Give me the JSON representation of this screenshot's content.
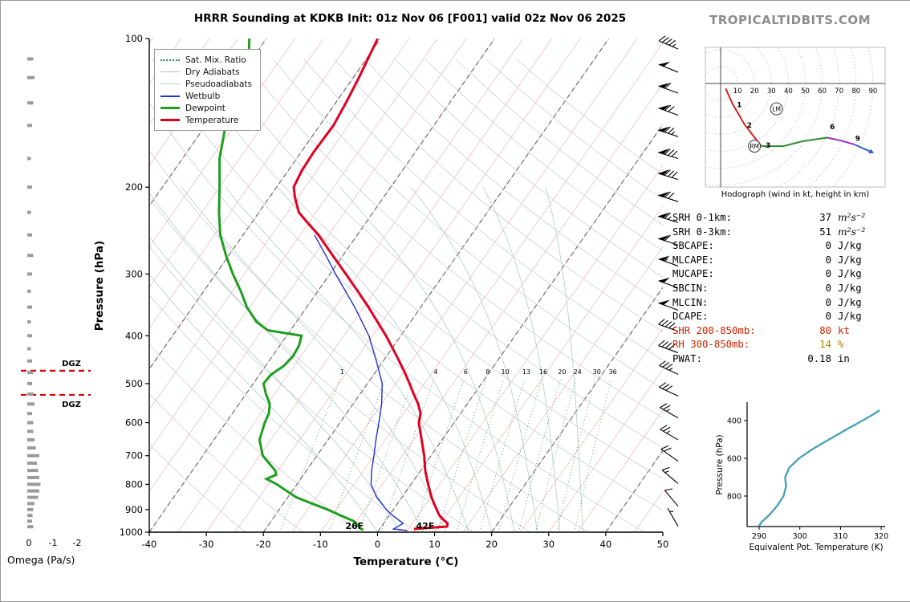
{
  "header": {
    "title": "HRRR Sounding at KDKB Init: 01z Nov 06 [F001] valid 02z Nov 06 2025",
    "brand": "TROPICALTIDBITS.COM"
  },
  "stats": {
    "rows": [
      {
        "label": "SRH 0-1km:",
        "value": "37",
        "unit": "m²s⁻²",
        "unit_style": "math"
      },
      {
        "label": "SRH 0-3km:",
        "value": "51",
        "unit": "m²s⁻²",
        "unit_style": "math"
      },
      {
        "label": "SBCAPE:",
        "value": "0",
        "unit": "J/kg"
      },
      {
        "label": "MLCAPE:",
        "value": "0",
        "unit": "J/kg"
      },
      {
        "label": "MUCAPE:",
        "value": "0",
        "unit": "J/kg"
      },
      {
        "label": "SBCIN:",
        "value": "0",
        "unit": "J/kg"
      },
      {
        "label": "MLCIN:",
        "value": "0",
        "unit": "J/kg"
      },
      {
        "label": "DCAPE:",
        "value": "0",
        "unit": "J/kg"
      },
      {
        "label": "SHR 200-850mb:",
        "value": "80",
        "unit": "kt",
        "label_color": "#cc2200",
        "value_color": "#cc2200"
      },
      {
        "label": "RH 300-850mb:",
        "value": "14",
        "unit": "%",
        "label_color": "#cc2200",
        "value_color": "#ab8a00"
      },
      {
        "label": "PWAT:",
        "value": "0.18",
        "unit": "in"
      }
    ]
  },
  "chart_data": {
    "type": "skewt-sounding",
    "skewt": {
      "xlabel": "Temperature (°C)",
      "ylabel": "Pressure (hPa)",
      "x_ticks": [
        -40,
        -30,
        -20,
        -10,
        0,
        10,
        20,
        30,
        40,
        50
      ],
      "y_ticks": [
        100,
        200,
        300,
        400,
        500,
        600,
        700,
        800,
        900,
        1000
      ],
      "xlim": [
        -40,
        50
      ],
      "plim": [
        100,
        1050
      ],
      "legend": [
        {
          "label": "Sat. Mix. Ratio",
          "key": "satmix"
        },
        {
          "label": "Dry Adiabats",
          "key": "dry"
        },
        {
          "label": "Pseudoadiabats",
          "key": "pseudo"
        },
        {
          "label": "Wetbulb",
          "key": "wetbulb"
        },
        {
          "label": "Dewpoint",
          "key": "dewpoint"
        },
        {
          "label": "Temperature",
          "key": "temperature"
        }
      ],
      "surface_temp_label": {
        "text": "42F",
        "color": "#e00020"
      },
      "surface_dew_label": {
        "text": "26F",
        "color": "#1f9e1f"
      },
      "mixing_ratio_lines": [
        1,
        2,
        3,
        4,
        6,
        8,
        10,
        13,
        16,
        20,
        24,
        30,
        36
      ],
      "mixing_ratio_labels": [
        1,
        4,
        6,
        8,
        10,
        13,
        16,
        20,
        24,
        30,
        36
      ],
      "isotherm_step": 5,
      "dashed_isotherms": [
        -100,
        -80,
        -60,
        -40,
        -20,
        0,
        20,
        40
      ],
      "dry_adiabats_thetaK": [
        250,
        260,
        270,
        280,
        290,
        300,
        310,
        320,
        330,
        340,
        350,
        360,
        370,
        380,
        390,
        400,
        410,
        420,
        430,
        440,
        450
      ],
      "pseudoadiabats_twC": [
        0,
        4,
        8,
        12,
        16,
        20,
        24,
        28,
        32,
        36
      ],
      "profiles": {
        "temperature": [
          [
            985,
            6.0
          ],
          [
            974,
            11.5
          ],
          [
            960,
            11.2
          ],
          [
            940,
            9.8
          ],
          [
            925,
            8.8
          ],
          [
            900,
            7.6
          ],
          [
            875,
            6.4
          ],
          [
            850,
            5.2
          ],
          [
            800,
            3.0
          ],
          [
            750,
            0.8
          ],
          [
            700,
            -1.2
          ],
          [
            650,
            -3.6
          ],
          [
            600,
            -6.2
          ],
          [
            575,
            -7.0
          ],
          [
            550,
            -8.6
          ],
          [
            525,
            -10.6
          ],
          [
            500,
            -12.6
          ],
          [
            475,
            -14.8
          ],
          [
            450,
            -17.2
          ],
          [
            425,
            -19.8
          ],
          [
            400,
            -22.6
          ],
          [
            375,
            -25.8
          ],
          [
            350,
            -29.2
          ],
          [
            325,
            -33.0
          ],
          [
            300,
            -37.2
          ],
          [
            275,
            -41.8
          ],
          [
            250,
            -46.8
          ],
          [
            235,
            -50.5
          ],
          [
            225,
            -53.0
          ],
          [
            210,
            -55.5
          ],
          [
            200,
            -57.0
          ],
          [
            185,
            -57.6
          ],
          [
            170,
            -57.8
          ],
          [
            150,
            -57.6
          ],
          [
            135,
            -58.2
          ],
          [
            120,
            -59.0
          ],
          [
            100,
            -60.5
          ]
        ],
        "dewpoint": [
          [
            988,
            -2.8
          ],
          [
            985,
            -3.3
          ],
          [
            970,
            -4.2
          ],
          [
            950,
            -5.5
          ],
          [
            925,
            -8.5
          ],
          [
            900,
            -11.5
          ],
          [
            875,
            -15.0
          ],
          [
            850,
            -18.5
          ],
          [
            825,
            -21.0
          ],
          [
            800,
            -23.5
          ],
          [
            780,
            -26.0
          ],
          [
            765,
            -24.8
          ],
          [
            750,
            -25.5
          ],
          [
            700,
            -29.5
          ],
          [
            650,
            -32.0
          ],
          [
            600,
            -33.2
          ],
          [
            575,
            -33.6
          ],
          [
            550,
            -34.6
          ],
          [
            525,
            -36.5
          ],
          [
            500,
            -38.2
          ],
          [
            480,
            -38.0
          ],
          [
            460,
            -36.8
          ],
          [
            440,
            -36.4
          ],
          [
            420,
            -36.6
          ],
          [
            400,
            -37.4
          ],
          [
            390,
            -44.0
          ],
          [
            375,
            -47.0
          ],
          [
            350,
            -50.5
          ],
          [
            325,
            -53.5
          ],
          [
            300,
            -57.0
          ],
          [
            275,
            -60.5
          ],
          [
            250,
            -64.0
          ],
          [
            225,
            -67.0
          ],
          [
            200,
            -70.0
          ],
          [
            175,
            -73.5
          ],
          [
            150,
            -76.5
          ],
          [
            130,
            -79.0
          ],
          [
            115,
            -79.5
          ],
          [
            100,
            -83.0
          ]
        ],
        "wetbulb": [
          [
            992,
            5.0
          ],
          [
            985,
            2.4
          ],
          [
            960,
            3.4
          ],
          [
            925,
            0.6
          ],
          [
            900,
            -1.2
          ],
          [
            850,
            -4.4
          ],
          [
            800,
            -7.0
          ],
          [
            750,
            -8.6
          ],
          [
            700,
            -10.0
          ],
          [
            650,
            -11.6
          ],
          [
            600,
            -13.2
          ],
          [
            550,
            -15.0
          ],
          [
            500,
            -17.4
          ],
          [
            450,
            -21.2
          ],
          [
            400,
            -25.6
          ],
          [
            350,
            -31.6
          ],
          [
            300,
            -39.0
          ],
          [
            275,
            -43.0
          ],
          [
            250,
            -47.5
          ]
        ]
      },
      "dgz": {
        "label": "DGZ",
        "levels": [
          471,
          527
        ],
        "color": "#dd0000"
      },
      "wind_barbs": [
        [
          973,
          5,
          330
        ],
        [
          886,
          10,
          320
        ],
        [
          797,
          15,
          310
        ],
        [
          718,
          20,
          305
        ],
        [
          650,
          25,
          300
        ],
        [
          587,
          25,
          300
        ],
        [
          530,
          30,
          295
        ],
        [
          479,
          35,
          295
        ],
        [
          433,
          40,
          290
        ],
        [
          392,
          45,
          290
        ],
        [
          355,
          50,
          290
        ],
        [
          320,
          50,
          290
        ],
        [
          289,
          55,
          290
        ],
        [
          262,
          60,
          288
        ],
        [
          236,
          65,
          288
        ],
        [
          214,
          70,
          288
        ],
        [
          193,
          80,
          287
        ],
        [
          175,
          80,
          287
        ],
        [
          158,
          75,
          288
        ],
        [
          143,
          70,
          290
        ],
        [
          129,
          60,
          290
        ],
        [
          117,
          50,
          292
        ],
        [
          105,
          45,
          293
        ]
      ]
    },
    "omega": {
      "label": "Omega (Pa/s)",
      "ticks": [
        "0",
        "-1",
        "-2"
      ],
      "values": [
        [
          975,
          -0.25
        ],
        [
          950,
          -0.2
        ],
        [
          925,
          -0.22
        ],
        [
          900,
          -0.25
        ],
        [
          875,
          -0.3
        ],
        [
          850,
          -0.45
        ],
        [
          825,
          -0.5
        ],
        [
          800,
          -0.55
        ],
        [
          775,
          -0.5
        ],
        [
          750,
          -0.45
        ],
        [
          725,
          -0.4
        ],
        [
          700,
          -0.5
        ],
        [
          675,
          -0.35
        ],
        [
          650,
          -0.3
        ],
        [
          625,
          -0.25
        ],
        [
          600,
          -0.25
        ],
        [
          575,
          -0.2
        ],
        [
          550,
          -0.3
        ],
        [
          525,
          -0.25
        ],
        [
          500,
          -0.2
        ],
        [
          475,
          -0.25
        ],
        [
          450,
          -0.2
        ],
        [
          425,
          -0.15
        ],
        [
          400,
          -0.2
        ],
        [
          375,
          -0.15
        ],
        [
          350,
          -0.2
        ],
        [
          325,
          -0.15
        ],
        [
          300,
          -0.2
        ],
        [
          275,
          -0.25
        ],
        [
          250,
          -0.2
        ],
        [
          225,
          -0.15
        ],
        [
          200,
          -0.2
        ],
        [
          175,
          -0.15
        ],
        [
          150,
          -0.2
        ],
        [
          135,
          -0.25
        ],
        [
          120,
          -0.3
        ],
        [
          110,
          -0.25
        ]
      ]
    },
    "hodograph": {
      "caption": "Hodograph (wind in kt, height in km)",
      "rings": [
        10,
        20,
        30,
        40,
        50,
        60,
        70,
        80,
        90
      ],
      "segments": [
        {
          "color": "#d42020",
          "points": [
            [
              3,
              -3
            ],
            [
              7,
              -12
            ],
            [
              14,
              -24
            ],
            [
              24,
              -37
            ]
          ]
        },
        {
          "color": "#2c8c2c",
          "points": [
            [
              24,
              -37
            ],
            [
              37,
              -37
            ],
            [
              49,
              -34
            ],
            [
              63,
              -32
            ]
          ]
        },
        {
          "color": "#9933bb",
          "points": [
            [
              63,
              -32
            ],
            [
              72,
              -34
            ],
            [
              79,
              -36
            ]
          ]
        },
        {
          "color": "#3060cc",
          "points": [
            [
              79,
              -36
            ],
            [
              88,
              -40
            ]
          ],
          "arrow": true
        }
      ],
      "height_labels": [
        {
          "text": "1",
          "u": 11,
          "v": -14
        },
        {
          "text": "2",
          "u": 17,
          "v": -26
        },
        {
          "text": "3",
          "u": 28,
          "v": -38
        },
        {
          "text": "6",
          "u": 66,
          "v": -27
        },
        {
          "text": "9",
          "u": 81,
          "v": -34
        }
      ],
      "markers": [
        {
          "text": "RM",
          "u": 20,
          "v": -37
        },
        {
          "text": "LM",
          "u": 33,
          "v": -15
        }
      ]
    },
    "thetae": {
      "xlabel": "Equivalent Pot. Temperature (K)",
      "ylabel": "Pressure (hPa)",
      "x_ticks": [
        290,
        300,
        310,
        320
      ],
      "highlight_tick": 290,
      "y_ticks": [
        400,
        600,
        800
      ],
      "curve": [
        [
          960,
          290.0
        ],
        [
          940,
          290.5
        ],
        [
          920,
          291.5
        ],
        [
          900,
          292.5
        ],
        [
          850,
          294.5
        ],
        [
          800,
          296.0
        ],
        [
          750,
          296.6
        ],
        [
          700,
          296.4
        ],
        [
          650,
          297.4
        ],
        [
          600,
          299.8
        ],
        [
          550,
          303.2
        ],
        [
          500,
          307.2
        ],
        [
          450,
          311.2
        ],
        [
          400,
          315.4
        ],
        [
          370,
          317.8
        ],
        [
          345,
          319.6
        ]
      ]
    }
  }
}
